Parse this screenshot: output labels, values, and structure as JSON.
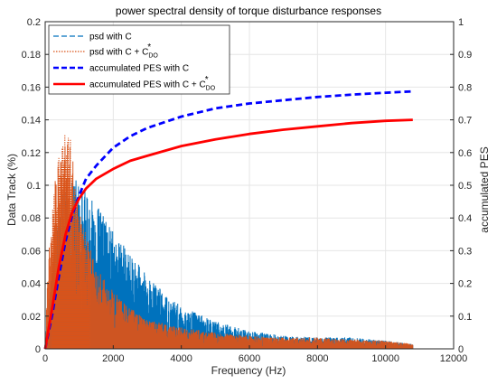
{
  "chart_data": {
    "type": "line",
    "title": "power spectral density of torque disturbance responses",
    "xlabel": "Frequency (Hz)",
    "ylabel": "Data Track (%)",
    "y2label": "accumulated PES",
    "xlim": [
      0,
      12000
    ],
    "ylim": [
      0,
      0.2
    ],
    "y2lim": [
      0,
      1
    ],
    "x_ticks": [
      "0",
      "2000",
      "4000",
      "6000",
      "8000",
      "10000",
      "12000"
    ],
    "y_ticks": [
      "0",
      "0.02",
      "0.04",
      "0.06",
      "0.08",
      "0.1",
      "0.12",
      "0.14",
      "0.16",
      "0.18",
      "0.2"
    ],
    "y2_ticks": [
      "0",
      "0.1",
      "0.2",
      "0.3",
      "0.4",
      "0.5",
      "0.6",
      "0.7",
      "0.8",
      "0.9",
      "1"
    ],
    "grid": true,
    "legend": {
      "position": "top-left",
      "entries": [
        {
          "label": "psd with C",
          "color": "#0072BD",
          "style": "dashed"
        },
        {
          "label": "psd with C + C",
          "superscript": "*",
          "subscript": "DO",
          "color": "#D95319",
          "style": "dotted"
        },
        {
          "label": "accumulated PES with C",
          "color": "#0000FF",
          "style": "dashed-thick"
        },
        {
          "label": "accumulated PES with C + C",
          "superscript": "*",
          "subscript": "DO",
          "color": "#FF0000",
          "style": "solid-thick"
        }
      ]
    },
    "series": [
      {
        "name": "psd with C",
        "axis": "left",
        "color": "#0072BD",
        "envelope": {
          "x": [
            0,
            100,
            300,
            500,
            700,
            900,
            1100,
            1300,
            1600,
            2000,
            2500,
            3000,
            3500,
            4000,
            5000,
            6000,
            7000,
            8000,
            9000,
            10000,
            10800
          ],
          "y": [
            0.005,
            0.03,
            0.075,
            0.095,
            0.1,
            0.105,
            0.1,
            0.093,
            0.085,
            0.072,
            0.058,
            0.045,
            0.034,
            0.026,
            0.017,
            0.011,
            0.008,
            0.007,
            0.007,
            0.005,
            0.003
          ]
        }
      },
      {
        "name": "psd with C + C*DO",
        "axis": "left",
        "color": "#D95319",
        "envelope": {
          "x": [
            0,
            100,
            300,
            500,
            600,
            700,
            800,
            900,
            1000,
            1200,
            1500,
            2000,
            2500,
            3000,
            4000,
            5000,
            6000,
            7000,
            8000,
            9000,
            10000,
            10800
          ],
          "y": [
            0.01,
            0.06,
            0.105,
            0.13,
            0.137,
            0.134,
            0.12,
            0.1,
            0.085,
            0.07,
            0.05,
            0.035,
            0.025,
            0.018,
            0.013,
            0.01,
            0.008,
            0.007,
            0.007,
            0.006,
            0.005,
            0.003
          ]
        }
      },
      {
        "name": "accumulated PES with C",
        "axis": "right",
        "color": "#0000FF",
        "x": [
          0,
          200,
          400,
          600,
          800,
          1000,
          1200,
          1500,
          2000,
          2500,
          3000,
          4000,
          5000,
          6000,
          7000,
          8000,
          9000,
          10000,
          10800
        ],
        "y": [
          0,
          0.1,
          0.22,
          0.33,
          0.41,
          0.47,
          0.52,
          0.56,
          0.615,
          0.65,
          0.675,
          0.71,
          0.735,
          0.75,
          0.76,
          0.77,
          0.777,
          0.783,
          0.787
        ]
      },
      {
        "name": "accumulated PES with C + C*DO",
        "axis": "right",
        "color": "#FF0000",
        "x": [
          0,
          200,
          400,
          600,
          800,
          1000,
          1200,
          1500,
          2000,
          2500,
          3000,
          4000,
          5000,
          6000,
          7000,
          8000,
          9000,
          10000,
          10800
        ],
        "y": [
          0,
          0.12,
          0.25,
          0.35,
          0.42,
          0.46,
          0.49,
          0.52,
          0.55,
          0.575,
          0.59,
          0.62,
          0.64,
          0.657,
          0.67,
          0.68,
          0.69,
          0.697,
          0.7
        ]
      }
    ]
  }
}
